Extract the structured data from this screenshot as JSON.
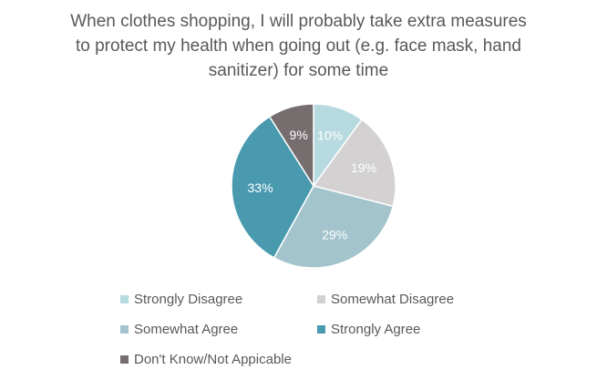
{
  "chart_data": {
    "type": "pie",
    "title": "When clothes shopping, I will probably take extra measures\nto protect my health when going out (e.g. face mask, hand\nsanitizer) for some time",
    "categories": [
      "Strongly Disagree",
      "Somewhat Disagree",
      "Somewhat Agree",
      "Strongly Agree",
      "Don't Know/Not Appicable"
    ],
    "values": [
      10,
      19,
      29,
      33,
      9
    ],
    "labels": [
      "10%",
      "19%",
      "29%",
      "33%",
      "9%"
    ],
    "colors": [
      "#b7d9e0",
      "#d3d1d2",
      "#a3c4cc",
      "#4a9aaf",
      "#756d6e"
    ],
    "unit": "%",
    "legend_position": "bottom",
    "start": "12 o'clock, clockwise"
  }
}
